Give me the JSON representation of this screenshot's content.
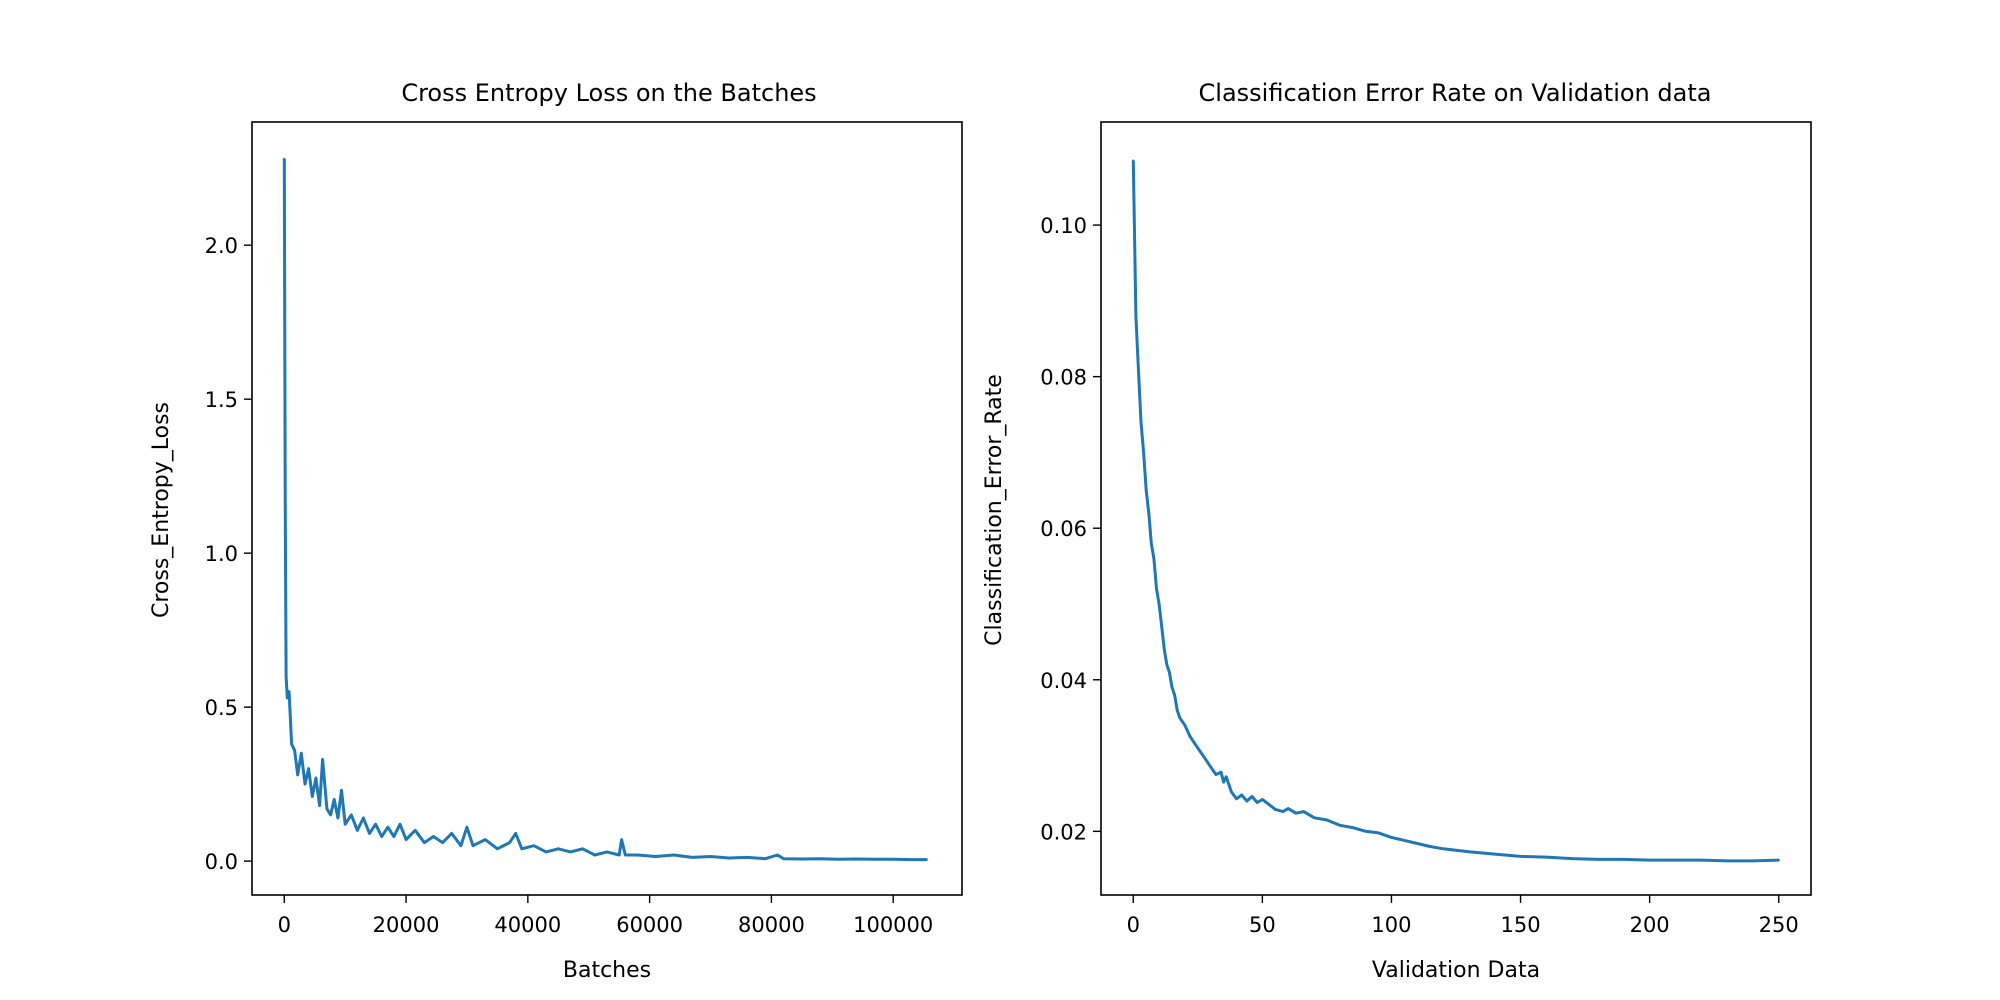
{
  "chart_data": [
    {
      "type": "line",
      "title": "Cross Entropy Loss on the Batches",
      "xlabel": "Batches",
      "ylabel": "Cross_Entropy_Loss",
      "xlim": [
        -5300,
        111300
      ],
      "ylim": [
        -0.11,
        2.4
      ],
      "grid": false,
      "xticks": [
        0,
        20000,
        40000,
        60000,
        80000,
        100000
      ],
      "xtick_labels": [
        "0",
        "20000",
        "40000",
        "60000",
        "80000",
        "100000"
      ],
      "yticks": [
        0.0,
        0.5,
        1.0,
        1.5,
        2.0
      ],
      "ytick_labels": [
        "0.0",
        "0.5",
        "1.0",
        "1.5",
        "2.0"
      ],
      "color": "#1f77b4",
      "series": [
        {
          "x": [
            0,
            150,
            300,
            500,
            800,
            1200,
            1700,
            2200,
            2800,
            3400,
            4000,
            4600,
            5200,
            5800,
            6300,
            7000,
            7600,
            8200,
            8800,
            9400,
            10000,
            11000,
            12000,
            13000,
            14000,
            15000,
            16000,
            17000,
            18000,
            19000,
            20000,
            21500,
            23000,
            24500,
            26000,
            27500,
            29000,
            30000,
            31000,
            33000,
            35000,
            37000,
            38000,
            39000,
            41000,
            43000,
            45000,
            47000,
            49000,
            51000,
            53000,
            55000,
            55400,
            56000,
            58000,
            61000,
            64000,
            67000,
            70000,
            73000,
            76000,
            79000,
            81000,
            82000,
            85000,
            88000,
            91000,
            94000,
            97000,
            100000,
            103000,
            105500
          ],
          "y": [
            2.28,
            1.2,
            0.6,
            0.53,
            0.55,
            0.38,
            0.36,
            0.28,
            0.35,
            0.25,
            0.3,
            0.21,
            0.27,
            0.18,
            0.33,
            0.17,
            0.15,
            0.2,
            0.14,
            0.23,
            0.12,
            0.15,
            0.1,
            0.14,
            0.09,
            0.12,
            0.08,
            0.11,
            0.08,
            0.12,
            0.07,
            0.1,
            0.06,
            0.08,
            0.06,
            0.09,
            0.05,
            0.11,
            0.05,
            0.07,
            0.04,
            0.06,
            0.09,
            0.04,
            0.05,
            0.03,
            0.04,
            0.03,
            0.04,
            0.02,
            0.03,
            0.02,
            0.07,
            0.02,
            0.02,
            0.015,
            0.02,
            0.012,
            0.015,
            0.01,
            0.012,
            0.008,
            0.02,
            0.008,
            0.007,
            0.008,
            0.006,
            0.007,
            0.006,
            0.006,
            0.005,
            0.005
          ]
        }
      ]
    },
    {
      "type": "line",
      "title": "Classification Error Rate on Validation data",
      "xlabel": "Validation Data",
      "ylabel": "Classification_Error_Rate",
      "xlim": [
        -12.5,
        262.5
      ],
      "ylim": [
        0.0116,
        0.1136
      ],
      "grid": false,
      "xticks": [
        0,
        50,
        100,
        150,
        200,
        250
      ],
      "xtick_labels": [
        "0",
        "50",
        "100",
        "150",
        "200",
        "250"
      ],
      "yticks": [
        0.02,
        0.04,
        0.06,
        0.08,
        0.1
      ],
      "ytick_labels": [
        "0.02",
        "0.04",
        "0.06",
        "0.08",
        "0.10"
      ],
      "color": "#1f77b4",
      "series": [
        {
          "x": [
            0,
            1,
            2,
            3,
            4,
            5,
            6,
            7,
            8,
            9,
            10,
            11,
            12,
            13,
            14,
            15,
            16,
            17,
            18,
            19,
            20,
            22,
            24,
            26,
            28,
            30,
            32,
            34,
            35,
            36,
            38,
            40,
            42,
            44,
            46,
            48,
            50,
            52,
            55,
            58,
            60,
            63,
            66,
            70,
            75,
            80,
            85,
            90,
            95,
            100,
            105,
            110,
            115,
            120,
            125,
            130,
            140,
            150,
            160,
            170,
            180,
            190,
            200,
            210,
            220,
            230,
            240,
            250
          ],
          "y": [
            0.1085,
            0.088,
            0.081,
            0.074,
            0.07,
            0.065,
            0.062,
            0.058,
            0.056,
            0.052,
            0.05,
            0.047,
            0.044,
            0.042,
            0.041,
            0.039,
            0.038,
            0.036,
            0.035,
            0.0345,
            0.034,
            0.0325,
            0.0315,
            0.0305,
            0.0295,
            0.0285,
            0.0275,
            0.0278,
            0.0265,
            0.0272,
            0.0252,
            0.0243,
            0.0248,
            0.024,
            0.0246,
            0.0238,
            0.0242,
            0.0237,
            0.0229,
            0.0226,
            0.023,
            0.0224,
            0.0226,
            0.0218,
            0.0215,
            0.0208,
            0.0205,
            0.02,
            0.0198,
            0.0192,
            0.0188,
            0.0184,
            0.018,
            0.0177,
            0.0175,
            0.0173,
            0.017,
            0.0167,
            0.0166,
            0.0164,
            0.0163,
            0.0163,
            0.0162,
            0.0162,
            0.0162,
            0.0161,
            0.0161,
            0.0162
          ]
        }
      ]
    }
  ]
}
